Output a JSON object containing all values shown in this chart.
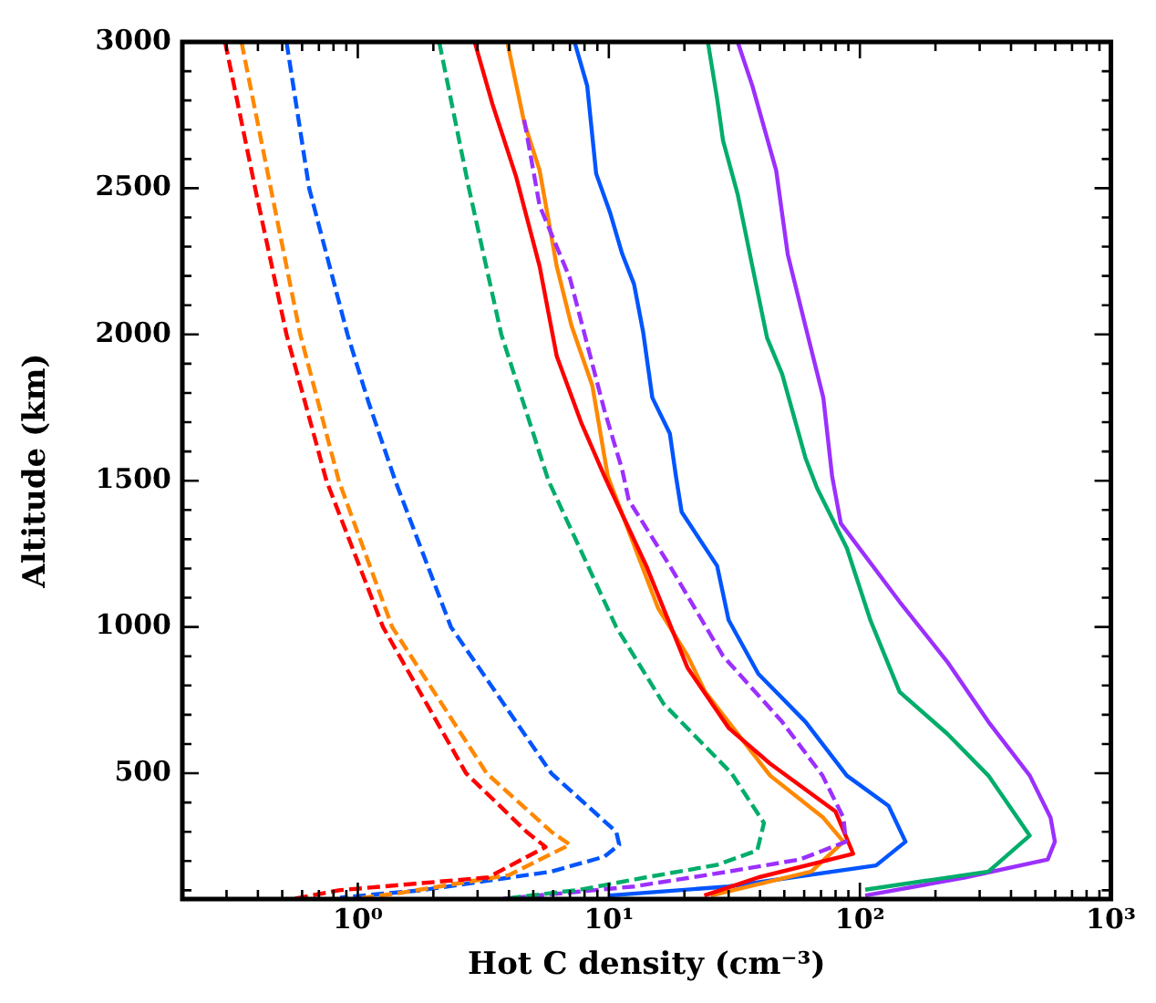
{
  "chart_data": {
    "type": "line",
    "xlabel": "Hot C density (cm⁻³)",
    "ylabel": "Altitude (km)",
    "log": "x",
    "grid": false,
    "xlim": [
      0.2,
      1000
    ],
    "ylim": [
      70,
      3000
    ],
    "xticks": [
      {
        "value": 0.3,
        "label": null
      },
      {
        "value": 0.4,
        "label": null
      },
      {
        "value": 0.5,
        "label": null
      },
      {
        "value": 0.6,
        "label": null
      },
      {
        "value": 0.7,
        "label": null
      },
      {
        "value": 0.8,
        "label": null
      },
      {
        "value": 0.9,
        "label": null
      },
      {
        "value": 1,
        "label": "10⁰"
      },
      {
        "value": 2,
        "label": null
      },
      {
        "value": 3,
        "label": null
      },
      {
        "value": 4,
        "label": null
      },
      {
        "value": 5,
        "label": null
      },
      {
        "value": 6,
        "label": null
      },
      {
        "value": 7,
        "label": null
      },
      {
        "value": 8,
        "label": null
      },
      {
        "value": 9,
        "label": null
      },
      {
        "value": 10,
        "label": "10¹"
      },
      {
        "value": 20,
        "label": null
      },
      {
        "value": 30,
        "label": null
      },
      {
        "value": 40,
        "label": null
      },
      {
        "value": 50,
        "label": null
      },
      {
        "value": 60,
        "label": null
      },
      {
        "value": 70,
        "label": null
      },
      {
        "value": 80,
        "label": null
      },
      {
        "value": 90,
        "label": null
      },
      {
        "value": 100,
        "label": "10²"
      },
      {
        "value": 200,
        "label": null
      },
      {
        "value": 300,
        "label": null
      },
      {
        "value": 400,
        "label": null
      },
      {
        "value": 500,
        "label": null
      },
      {
        "value": 600,
        "label": null
      },
      {
        "value": 700,
        "label": null
      },
      {
        "value": 800,
        "label": null
      },
      {
        "value": 900,
        "label": null
      },
      {
        "value": 1000,
        "label": "10³"
      }
    ],
    "yticks": [
      {
        "value": 100,
        "label": null
      },
      {
        "value": 200,
        "label": null
      },
      {
        "value": 300,
        "label": null
      },
      {
        "value": 400,
        "label": null
      },
      500,
      {
        "value": 600,
        "label": null
      },
      {
        "value": 700,
        "label": null
      },
      {
        "value": 800,
        "label": null
      },
      {
        "value": 900,
        "label": null
      },
      1000,
      {
        "value": 1100,
        "label": null
      },
      {
        "value": 1200,
        "label": null
      },
      {
        "value": 1300,
        "label": null
      },
      {
        "value": 1400,
        "label": null
      },
      1500,
      {
        "value": 1600,
        "label": null
      },
      {
        "value": 1700,
        "label": null
      },
      {
        "value": 1800,
        "label": null
      },
      {
        "value": 1900,
        "label": null
      },
      2000,
      {
        "value": 2100,
        "label": null
      },
      {
        "value": 2200,
        "label": null
      },
      {
        "value": 2300,
        "label": null
      },
      {
        "value": 2400,
        "label": null
      },
      2500,
      {
        "value": 2600,
        "label": null
      },
      {
        "value": 2700,
        "label": null
      },
      {
        "value": 2800,
        "label": null
      },
      {
        "value": 2900,
        "label": null
      },
      3000
    ],
    "series": [
      {
        "color": "#ff0000",
        "line_style": "dashed",
        "x": [
          0.296,
          0.39,
          0.52,
          0.75,
          1.26,
          2.7,
          4.7,
          5.6,
          3.3,
          0.84,
          0.55
        ],
        "values": [
          3000,
          2500,
          2000,
          1500,
          1000,
          500,
          300,
          248,
          144,
          100,
          70
        ]
      },
      {
        "color": "#ff8800",
        "line_style": "dashed",
        "x": [
          0.344,
          0.45,
          0.59,
          0.84,
          1.37,
          3.26,
          5.9,
          7.0,
          4.0,
          1.45,
          1.0
        ],
        "values": [
          3000,
          2500,
          2000,
          1500,
          1000,
          500,
          300,
          256,
          152,
          90,
          72
        ]
      },
      {
        "color": "#0055ff",
        "line_style": "dashed",
        "x": [
          0.52,
          0.64,
          0.91,
          1.1,
          1.41,
          2.35,
          5.9,
          10.7,
          11.0,
          9.6,
          5.9,
          1.79,
          0.85
        ],
        "values": [
          3000,
          2500,
          2000,
          1772,
          1500,
          1000,
          500,
          300,
          256,
          215,
          164,
          100,
          75
        ]
      },
      {
        "color": "#00ad6a",
        "line_style": "dashed",
        "x": [
          2.11,
          2.77,
          3.73,
          5.75,
          10.7,
          16.5,
          30.8,
          41.5,
          39,
          27,
          14,
          7.7,
          3.8
        ],
        "values": [
          3000,
          2500,
          2000,
          1500,
          1000,
          738,
          500,
          330,
          236,
          187,
          144,
          102,
          71
        ]
      },
      {
        "color": "#9b30ff",
        "line_style": "dashed",
        "x": [
          4.6,
          5.3,
          7.0,
          9.6,
          11.3,
          12.0,
          17.5,
          28.5,
          49,
          71,
          86,
          88,
          57.5,
          30,
          12.6,
          3.8
        ],
        "values": [
          2734,
          2440,
          2192,
          1741,
          1538,
          1434,
          1209,
          901,
          676,
          492,
          348,
          266,
          205,
          164,
          113,
          71
        ]
      },
      {
        "color": "#ff0000",
        "line_style": "solid",
        "x": [
          2.92,
          3.44,
          4.27,
          5.3,
          6.2,
          7.75,
          9.6,
          10.1,
          14.1,
          20.6,
          30,
          43.9,
          80,
          94,
          39.4,
          24
        ],
        "values": [
          3000,
          2787,
          2540,
          2233,
          1926,
          1700,
          1516,
          1475,
          1209,
          860,
          655,
          533,
          369,
          225,
          144,
          82
        ]
      },
      {
        "color": "#ff8800",
        "line_style": "solid",
        "x": [
          3.94,
          4.6,
          5.3,
          6.2,
          7.1,
          8.6,
          9.9,
          10.1,
          15.7,
          20.6,
          24.2,
          43.9,
          71.5,
          86,
          64,
          25.5
        ],
        "values": [
          3000,
          2725,
          2561,
          2233,
          2030,
          1824,
          1516,
          1496,
          1065,
          901,
          778,
          492,
          348,
          266,
          164,
          82
        ]
      },
      {
        "color": "#0055ff",
        "line_style": "solid",
        "x": [
          7.3,
          8.2,
          8.9,
          10.1,
          11.3,
          12.6,
          13.7,
          14.9,
          17.5,
          18.5,
          19.5,
          27,
          30,
          39.4,
          60.7,
          88.7,
          130,
          152,
          116,
          30,
          10
        ],
        "values": [
          3000,
          2850,
          2550,
          2418,
          2276,
          2172,
          2008,
          1784,
          1661,
          1516,
          1393,
          1209,
          1024,
          840,
          676,
          492,
          389,
          266,
          185,
          113,
          82
        ]
      },
      {
        "color": "#00ad6a",
        "line_style": "solid",
        "x": [
          24.8,
          27,
          28.5,
          32.6,
          37.3,
          42.7,
          49,
          60.7,
          67.5,
          88.7,
          110,
          144,
          223,
          325,
          475,
          325,
          105
        ],
        "values": [
          3000,
          2806,
          2663,
          2479,
          2233,
          1988,
          1865,
          1578,
          1475,
          1270,
          1024,
          778,
          635,
          492,
          287,
          164,
          102
        ]
      },
      {
        "color": "#9b30ff",
        "line_style": "solid",
        "x": [
          32.6,
          37.3,
          46.4,
          51.6,
          60.7,
          71.5,
          77.5,
          84,
          144,
          223,
          325,
          475,
          575,
          598,
          560,
          263,
          105
        ],
        "values": [
          3000,
          2850,
          2561,
          2274,
          2028,
          1784,
          1516,
          1354,
          1086,
          881,
          676,
          492,
          348,
          266,
          205,
          144,
          82
        ]
      }
    ]
  }
}
